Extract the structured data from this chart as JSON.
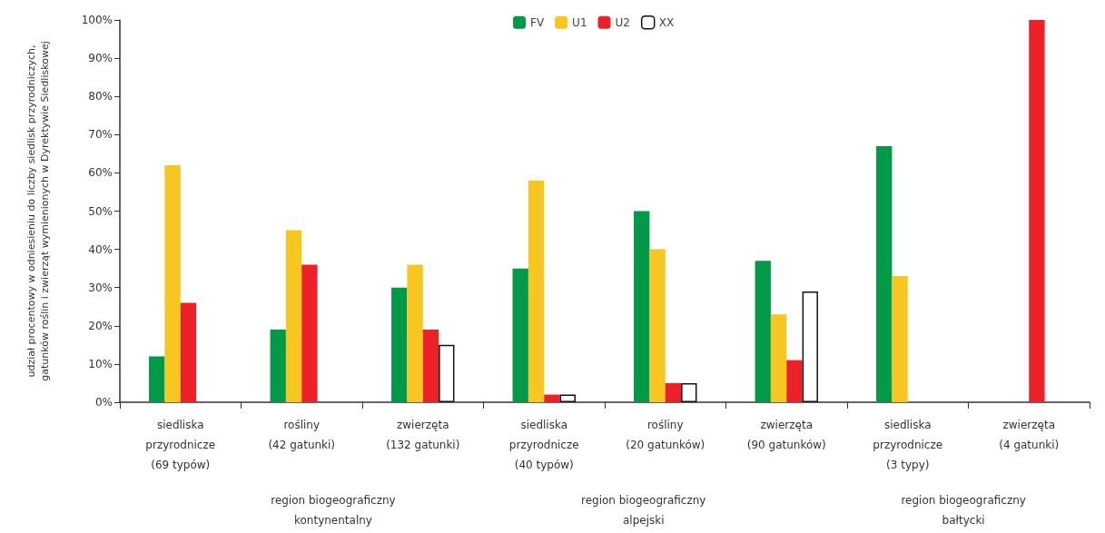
{
  "chart_data": {
    "type": "bar",
    "ylabel": "udział procentowy w odniesieniu do liczby siedlisk przyrodniczych,\ngatunków roślin i zwierząt wymienionych w Dyrektywie Siedliskowej",
    "categories": [
      "siedliska\nprzyrodnicze\n(69 typów)",
      "rośliny\n(42 gatunki)",
      "zwierzęta\n(132 gatunki)",
      "siedliska\nprzyrodnicze\n(40 typów)",
      "rośliny\n(20 gatunków)",
      "zwierzęta\n(90 gatunków)",
      "siedliska\nprzyrodnicze\n(3 typy)",
      "zwierzęta\n(4 gatunki)"
    ],
    "series": [
      {
        "name": "FV",
        "color": "#009a49",
        "values": [
          12,
          19,
          30,
          35,
          50,
          37,
          67,
          null
        ]
      },
      {
        "name": "U1",
        "color": "#f8c620",
        "values": [
          62,
          45,
          36,
          58,
          40,
          23,
          33,
          null
        ]
      },
      {
        "name": "U2",
        "color": "#ed2229",
        "values": [
          26,
          36,
          19,
          2,
          5,
          11,
          null,
          100
        ]
      },
      {
        "name": "XX",
        "color": "#ffffff",
        "values": [
          null,
          null,
          15,
          2,
          5,
          29,
          null,
          null
        ]
      }
    ],
    "ylim": [
      0,
      100
    ],
    "yticks": [
      {
        "value": 0,
        "label": "0%"
      },
      {
        "value": 10,
        "label": "10%"
      },
      {
        "value": 20,
        "label": "20%"
      },
      {
        "value": 30,
        "label": "30%"
      },
      {
        "value": 40,
        "label": "40%"
      },
      {
        "value": 50,
        "label": "50%"
      },
      {
        "value": 60,
        "label": "60%"
      },
      {
        "value": 70,
        "label": "70%"
      },
      {
        "value": 80,
        "label": "80%"
      },
      {
        "value": 90,
        "label": "90%"
      },
      {
        "value": 100,
        "label": "100%"
      }
    ],
    "legend": "top",
    "grid": false,
    "annotations": [
      "region biogeograficzny\nkontynentalny",
      "region biogeograficzny\nalpejski",
      "region biogeograficzny\nbałtycki"
    ]
  }
}
